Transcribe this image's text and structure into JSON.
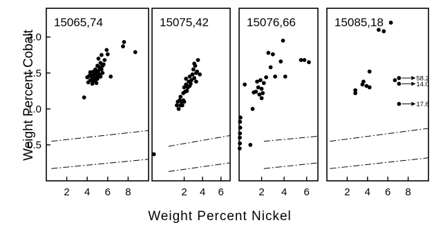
{
  "chart_data": [
    {
      "type": "scatter",
      "title": "15065,74",
      "xlabel": "Weight Percent Nickel",
      "ylabel": "Weight Percent Cobalt",
      "xlim": [
        0,
        10
      ],
      "ylim": [
        0,
        2.4
      ],
      "x_ticks": [
        "2",
        "4",
        "6",
        "8"
      ],
      "y_ticks": [
        "0.5",
        "1.0",
        "1.5",
        "2.0"
      ],
      "points": [
        [
          3.7,
          1.16
        ],
        [
          4.0,
          1.44
        ],
        [
          4.1,
          1.37
        ],
        [
          4.2,
          1.46
        ],
        [
          4.3,
          1.4
        ],
        [
          4.3,
          1.51
        ],
        [
          4.4,
          1.47
        ],
        [
          4.5,
          1.43
        ],
        [
          4.5,
          1.35
        ],
        [
          4.6,
          1.52
        ],
        [
          4.6,
          1.39
        ],
        [
          4.7,
          1.48
        ],
        [
          4.7,
          1.43
        ],
        [
          4.8,
          1.55
        ],
        [
          4.8,
          1.4
        ],
        [
          4.9,
          1.5
        ],
        [
          4.9,
          1.36
        ],
        [
          5.0,
          1.45
        ],
        [
          5.0,
          1.6
        ],
        [
          5.0,
          1.42
        ],
        [
          5.1,
          1.53
        ],
        [
          5.1,
          1.7
        ],
        [
          5.2,
          1.48
        ],
        [
          5.2,
          1.58
        ],
        [
          5.3,
          1.45
        ],
        [
          5.3,
          1.64
        ],
        [
          5.4,
          1.55
        ],
        [
          5.4,
          1.75
        ],
        [
          5.5,
          1.6
        ],
        [
          5.5,
          1.5
        ],
        [
          5.6,
          1.62
        ],
        [
          5.7,
          1.68
        ],
        [
          5.9,
          1.82
        ],
        [
          6.0,
          1.76
        ],
        [
          6.3,
          1.45
        ],
        [
          7.6,
          1.93
        ],
        [
          7.5,
          1.87
        ],
        [
          8.7,
          1.79
        ]
      ],
      "ref_lines": [
        [
          [
            0.5,
            0.55
          ],
          [
            10,
            0.7
          ]
        ],
        [
          [
            0.5,
            0.17
          ],
          [
            10,
            0.3
          ]
        ]
      ]
    },
    {
      "type": "scatter",
      "title": "15075,42",
      "xlim": [
        -1.5,
        7
      ],
      "ylim": [
        0,
        2.4
      ],
      "x_ticks": [
        "2",
        "4",
        "6"
      ],
      "points": [
        [
          -1.3,
          0.37
        ],
        [
          1.2,
          1.05
        ],
        [
          1.3,
          1.1
        ],
        [
          1.4,
          1.0
        ],
        [
          1.5,
          1.12
        ],
        [
          1.6,
          1.05
        ],
        [
          1.7,
          1.1
        ],
        [
          1.6,
          1.17
        ],
        [
          1.8,
          1.05
        ],
        [
          1.9,
          1.12
        ],
        [
          2.0,
          1.1
        ],
        [
          1.9,
          1.22
        ],
        [
          2.0,
          1.3
        ],
        [
          2.1,
          1.24
        ],
        [
          2.2,
          1.34
        ],
        [
          2.3,
          1.25
        ],
        [
          2.4,
          1.3
        ],
        [
          2.2,
          1.42
        ],
        [
          2.5,
          1.38
        ],
        [
          2.6,
          1.45
        ],
        [
          2.7,
          1.35
        ],
        [
          2.8,
          1.4
        ],
        [
          2.9,
          1.48
        ],
        [
          3.0,
          1.55
        ],
        [
          3.1,
          1.43
        ],
        [
          3.2,
          1.6
        ],
        [
          3.3,
          1.5
        ],
        [
          3.4,
          1.52
        ],
        [
          3.5,
          1.68
        ],
        [
          3.3,
          1.38
        ],
        [
          3.1,
          1.63
        ],
        [
          3.7,
          1.48
        ],
        [
          2.6,
          1.32
        ]
      ],
      "ref_lines": [
        [
          [
            0.3,
            0.48
          ],
          [
            7,
            0.63
          ]
        ],
        [
          [
            0.3,
            0.13
          ],
          [
            7,
            0.25
          ]
        ]
      ]
    },
    {
      "type": "scatter",
      "title": "15076,66",
      "xlim": [
        0,
        7
      ],
      "ylim": [
        0,
        2.4
      ],
      "x_ticks": [
        "2",
        "4",
        "6"
      ],
      "points": [
        [
          0.05,
          0.45
        ],
        [
          0.07,
          0.52
        ],
        [
          0.06,
          0.6
        ],
        [
          0.08,
          0.66
        ],
        [
          0.1,
          0.74
        ],
        [
          0.08,
          0.82
        ],
        [
          0.12,
          0.88
        ],
        [
          0.5,
          1.34
        ],
        [
          1.2,
          1.0
        ],
        [
          1.3,
          1.23
        ],
        [
          1.5,
          1.24
        ],
        [
          1.6,
          1.38
        ],
        [
          1.7,
          1.3
        ],
        [
          1.8,
          1.2
        ],
        [
          1.9,
          1.4
        ],
        [
          2.0,
          1.28
        ],
        [
          2.1,
          1.22
        ],
        [
          2.2,
          1.36
        ],
        [
          2.0,
          1.15
        ],
        [
          2.4,
          1.44
        ],
        [
          2.6,
          1.78
        ],
        [
          2.8,
          1.58
        ],
        [
          3.0,
          1.76
        ],
        [
          3.2,
          1.45
        ],
        [
          3.7,
          1.66
        ],
        [
          3.9,
          1.95
        ],
        [
          4.1,
          1.45
        ],
        [
          5.5,
          1.68
        ],
        [
          5.8,
          1.68
        ],
        [
          6.2,
          1.65
        ],
        [
          1.0,
          0.5
        ]
      ],
      "ref_lines": [
        [
          [
            2.2,
            0.55
          ],
          [
            7,
            0.62
          ]
        ],
        [
          [
            2.2,
            0.17
          ],
          [
            7,
            0.25
          ]
        ]
      ]
    },
    {
      "type": "scatter",
      "title": "15085,18",
      "xlim": [
        0,
        10
      ],
      "ylim": [
        0,
        2.4
      ],
      "x_ticks": [
        "2",
        "4",
        "6",
        "8"
      ],
      "points": [
        [
          2.8,
          1.22
        ],
        [
          2.8,
          1.26
        ],
        [
          3.5,
          1.34
        ],
        [
          3.6,
          1.38
        ],
        [
          3.9,
          1.32
        ],
        [
          4.2,
          1.3
        ],
        [
          4.2,
          1.52
        ],
        [
          5.1,
          2.1
        ],
        [
          5.6,
          2.08
        ],
        [
          6.3,
          2.2
        ],
        [
          6.7,
          1.4
        ],
        [
          7.1,
          1.43
        ],
        [
          7.1,
          1.35
        ],
        [
          7.1,
          1.07
        ]
      ],
      "ref_lines": [
        [
          [
            0.3,
            0.55
          ],
          [
            10,
            0.73
          ]
        ],
        [
          [
            0.3,
            0.17
          ],
          [
            10,
            0.32
          ]
        ]
      ],
      "annotations": [
        {
          "label": "58.2",
          "x": 7.1,
          "y": 1.43
        },
        {
          "label": "14.0",
          "x": 7.1,
          "y": 1.35
        },
        {
          "label": "17.8",
          "x": 7.1,
          "y": 1.07
        }
      ]
    }
  ]
}
